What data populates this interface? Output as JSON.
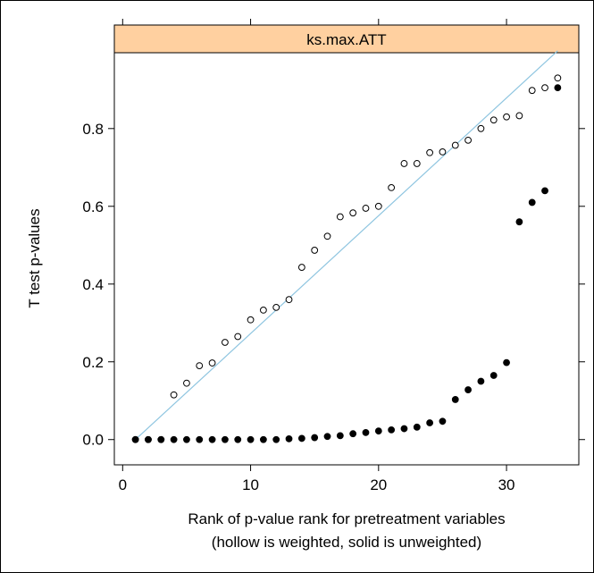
{
  "chart_data": {
    "type": "scatter",
    "strip_title": "ks.max.ATT",
    "strip_color": "#ffd0a0",
    "xlabel_line1": "Rank of p-value rank for pretreatment variables",
    "xlabel_line2": "(hollow is weighted, solid is unweighted)",
    "ylabel": "T test p-values",
    "xlim": [
      -0.65,
      35.65
    ],
    "ylim": [
      -0.065,
      0.995
    ],
    "x_ticks": [
      0,
      10,
      20,
      30
    ],
    "x_tick_labels": [
      "0",
      "10",
      "20",
      "30"
    ],
    "y_ticks": [
      0.0,
      0.2,
      0.4,
      0.6,
      0.8
    ],
    "y_tick_labels": [
      "0.0",
      "0.2",
      "0.4",
      "0.6",
      "0.8"
    ],
    "reference_line": {
      "from": [
        1,
        0
      ],
      "to": [
        34,
        1
      ],
      "color": "#8ec5e0"
    },
    "series": [
      {
        "name": "hollow is weighted",
        "marker": "hollow",
        "x": [
          1,
          2,
          3,
          4,
          5,
          6,
          7,
          8,
          9,
          10,
          11,
          12,
          13,
          14,
          15,
          16,
          17,
          18,
          19,
          20,
          21,
          22,
          23,
          24,
          25,
          26,
          27,
          28,
          29,
          30,
          31,
          32,
          33,
          34
        ],
        "values": [
          0.0,
          0.0,
          0.0,
          0.115,
          0.145,
          0.19,
          0.197,
          0.25,
          0.265,
          0.308,
          0.333,
          0.34,
          0.36,
          0.443,
          0.487,
          0.523,
          0.573,
          0.583,
          0.595,
          0.6,
          0.648,
          0.71,
          0.71,
          0.738,
          0.74,
          0.757,
          0.77,
          0.8,
          0.822,
          0.83,
          0.833,
          0.898,
          0.905,
          0.93
        ]
      },
      {
        "name": "solid is unweighted",
        "marker": "solid",
        "x": [
          1,
          2,
          3,
          4,
          5,
          6,
          7,
          8,
          9,
          10,
          11,
          12,
          13,
          14,
          15,
          16,
          17,
          18,
          19,
          20,
          21,
          22,
          23,
          24,
          25,
          26,
          27,
          28,
          29,
          30,
          31,
          32,
          33,
          34
        ],
        "values": [
          0.0,
          0.0,
          0.0,
          0.0,
          0.0,
          0.0,
          0.0,
          0.0,
          0.0,
          0.0,
          0.0,
          0.0,
          0.002,
          0.003,
          0.005,
          0.008,
          0.01,
          0.015,
          0.018,
          0.022,
          0.025,
          0.028,
          0.032,
          0.043,
          0.047,
          0.103,
          0.128,
          0.15,
          0.165,
          0.198,
          0.56,
          0.61,
          0.64,
          0.905
        ]
      }
    ]
  }
}
